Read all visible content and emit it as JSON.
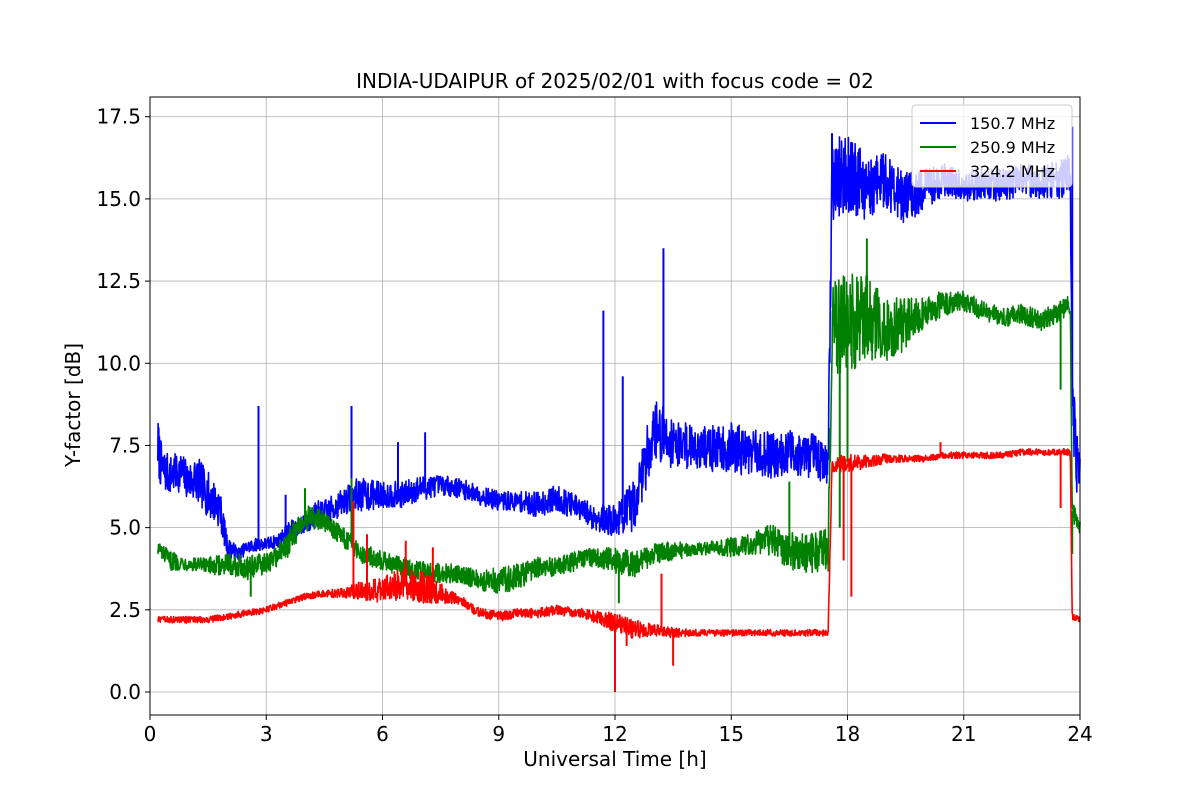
{
  "chart_data": {
    "type": "line",
    "title": "INDIA-UDAIPUR of 2025/02/01 with focus code = 02",
    "xlabel": "Universal Time [h]",
    "ylabel": "Y-factor [dB]",
    "xlim": [
      0,
      24
    ],
    "ylim": [
      -0.7,
      18.1
    ],
    "xticks": [
      0,
      3,
      6,
      9,
      12,
      15,
      18,
      21,
      24
    ],
    "xtick_labels": [
      "0",
      "3",
      "6",
      "9",
      "12",
      "15",
      "18",
      "21",
      "24"
    ],
    "yticks": [
      0.0,
      2.5,
      5.0,
      7.5,
      10.0,
      12.5,
      15.0,
      17.5
    ],
    "ytick_labels": [
      "0.0",
      "2.5",
      "5.0",
      "7.5",
      "10.0",
      "12.5",
      "15.0",
      "17.5"
    ],
    "grid": true,
    "legend_position": "top-right",
    "series": [
      {
        "name": "150.7 MHz",
        "color": "#0000ff",
        "x": [
          0.2,
          0.3,
          0.5,
          0.8,
          1.0,
          1.2,
          1.5,
          1.8,
          2.0,
          2.3,
          2.5,
          2.8,
          3.0,
          3.3,
          3.6,
          4.0,
          4.3,
          4.6,
          5.0,
          5.3,
          5.6,
          6.0,
          6.5,
          7.0,
          7.5,
          8.0,
          8.5,
          9.0,
          9.5,
          10.0,
          10.5,
          11.0,
          11.5,
          12.0,
          12.5,
          13.0,
          13.5,
          14.0,
          14.5,
          15.0,
          15.5,
          16.0,
          16.5,
          17.0,
          17.5,
          17.6,
          18.0,
          18.5,
          19.0,
          19.5,
          20.0,
          20.5,
          21.0,
          21.5,
          22.0,
          22.5,
          23.0,
          23.5,
          23.75,
          23.8,
          23.9,
          24.0
        ],
        "values": [
          7.5,
          6.8,
          6.6,
          6.7,
          6.4,
          6.5,
          6.0,
          5.6,
          4.4,
          4.2,
          4.4,
          4.5,
          4.5,
          4.6,
          4.9,
          5.1,
          5.4,
          5.5,
          5.8,
          6.0,
          6.0,
          6.0,
          6.0,
          6.2,
          6.3,
          6.2,
          6.0,
          5.8,
          5.8,
          5.7,
          5.9,
          5.6,
          5.3,
          5.2,
          5.7,
          8.0,
          7.6,
          7.5,
          7.4,
          7.4,
          7.3,
          7.2,
          7.3,
          7.2,
          7.0,
          15.5,
          15.8,
          15.3,
          15.6,
          15.0,
          15.3,
          15.6,
          15.4,
          15.5,
          15.4,
          15.6,
          15.5,
          15.6,
          15.8,
          9.0,
          7.0,
          6.7
        ],
        "noise": [
          0.9,
          0.7,
          0.6,
          0.6,
          0.6,
          0.7,
          0.7,
          0.6,
          0.3,
          0.2,
          0.2,
          0.2,
          0.2,
          0.2,
          0.3,
          0.3,
          0.4,
          0.4,
          0.4,
          0.5,
          0.5,
          0.4,
          0.4,
          0.4,
          0.3,
          0.3,
          0.3,
          0.3,
          0.3,
          0.4,
          0.4,
          0.4,
          0.4,
          0.5,
          0.8,
          1.0,
          0.8,
          0.7,
          0.7,
          0.8,
          0.7,
          0.7,
          0.7,
          0.7,
          0.7,
          1.3,
          1.2,
          1.0,
          0.9,
          0.8,
          0.6,
          0.5,
          0.5,
          0.5,
          0.5,
          0.5,
          0.5,
          0.6,
          0.6,
          1.2,
          1.0,
          0.5
        ],
        "spikes": [
          [
            2.8,
            8.7
          ],
          [
            3.5,
            6.0
          ],
          [
            5.2,
            8.7
          ],
          [
            6.4,
            7.6
          ],
          [
            7.1,
            7.9
          ],
          [
            11.7,
            11.6
          ],
          [
            12.2,
            9.6
          ],
          [
            13.25,
            13.5
          ],
          [
            17.6,
            17.0
          ],
          [
            23.8,
            17.2
          ]
        ]
      },
      {
        "name": "250.9 MHz",
        "color": "#008000",
        "x": [
          0.2,
          0.5,
          1.0,
          1.5,
          2.0,
          2.5,
          3.0,
          3.5,
          4.0,
          4.5,
          5.0,
          5.5,
          6.0,
          6.5,
          7.0,
          7.5,
          8.0,
          8.5,
          9.0,
          9.5,
          10.0,
          10.5,
          11.0,
          11.5,
          12.0,
          12.5,
          13.0,
          13.5,
          14.0,
          14.5,
          15.0,
          15.5,
          16.0,
          16.5,
          17.0,
          17.5,
          17.6,
          18.0,
          18.5,
          19.0,
          19.5,
          20.0,
          20.5,
          21.0,
          21.5,
          22.0,
          22.5,
          23.0,
          23.5,
          23.75,
          23.8,
          24.0
        ],
        "values": [
          4.4,
          4.0,
          3.9,
          3.8,
          3.9,
          3.8,
          3.9,
          4.4,
          5.3,
          5.2,
          4.7,
          4.2,
          4.0,
          3.8,
          3.7,
          3.6,
          3.6,
          3.4,
          3.4,
          3.5,
          3.8,
          3.8,
          4.0,
          4.1,
          4.0,
          3.9,
          4.2,
          4.3,
          4.3,
          4.4,
          4.4,
          4.5,
          4.6,
          4.3,
          4.2,
          4.3,
          11.0,
          11.2,
          11.4,
          11.0,
          11.2,
          11.6,
          11.8,
          11.9,
          11.6,
          11.4,
          11.5,
          11.3,
          11.6,
          11.8,
          5.5,
          5.0
        ],
        "noise": [
          0.2,
          0.3,
          0.2,
          0.3,
          0.3,
          0.4,
          0.3,
          0.4,
          0.4,
          0.3,
          0.3,
          0.3,
          0.3,
          0.3,
          0.3,
          0.3,
          0.3,
          0.3,
          0.4,
          0.4,
          0.3,
          0.3,
          0.3,
          0.3,
          0.4,
          0.4,
          0.3,
          0.3,
          0.2,
          0.2,
          0.3,
          0.3,
          0.5,
          0.6,
          0.6,
          0.7,
          1.4,
          1.6,
          1.3,
          1.0,
          0.8,
          0.5,
          0.4,
          0.3,
          0.3,
          0.3,
          0.3,
          0.3,
          0.3,
          0.3,
          0.3,
          0.3
        ],
        "spikes": [
          [
            2.6,
            2.9
          ],
          [
            4.0,
            6.2
          ],
          [
            5.2,
            6.5
          ],
          [
            12.1,
            2.7
          ],
          [
            16.5,
            6.4
          ],
          [
            18.5,
            13.8
          ],
          [
            17.8,
            5.0
          ],
          [
            18.0,
            7.0
          ],
          [
            23.5,
            9.2
          ],
          [
            23.8,
            4.2
          ]
        ]
      },
      {
        "name": "324.2 MHz",
        "color": "#ff0000",
        "x": [
          0.2,
          0.5,
          1.0,
          1.5,
          2.0,
          2.5,
          3.0,
          3.5,
          4.0,
          4.5,
          5.0,
          5.5,
          6.0,
          6.5,
          7.0,
          7.5,
          8.0,
          8.5,
          9.0,
          9.5,
          10.0,
          10.5,
          11.0,
          11.5,
          12.0,
          12.5,
          13.0,
          13.5,
          14.0,
          14.5,
          15.0,
          15.5,
          16.0,
          16.5,
          17.0,
          17.5,
          17.6,
          18.0,
          18.5,
          19.0,
          19.5,
          20.0,
          20.5,
          21.0,
          21.5,
          22.0,
          22.5,
          23.0,
          23.5,
          23.75,
          23.8,
          24.0
        ],
        "values": [
          2.2,
          2.2,
          2.2,
          2.2,
          2.3,
          2.4,
          2.5,
          2.7,
          2.9,
          3.0,
          3.0,
          3.1,
          3.1,
          3.3,
          3.2,
          3.0,
          2.8,
          2.4,
          2.3,
          2.4,
          2.4,
          2.5,
          2.4,
          2.3,
          2.1,
          1.9,
          1.9,
          1.8,
          1.8,
          1.8,
          1.8,
          1.8,
          1.8,
          1.8,
          1.8,
          1.8,
          6.9,
          7.0,
          7.0,
          7.1,
          7.1,
          7.1,
          7.2,
          7.2,
          7.2,
          7.2,
          7.3,
          7.3,
          7.3,
          7.3,
          2.3,
          2.2
        ],
        "noise": [
          0.1,
          0.1,
          0.1,
          0.1,
          0.1,
          0.1,
          0.1,
          0.1,
          0.1,
          0.1,
          0.15,
          0.3,
          0.4,
          0.5,
          0.5,
          0.3,
          0.15,
          0.15,
          0.15,
          0.15,
          0.15,
          0.15,
          0.15,
          0.2,
          0.3,
          0.3,
          0.2,
          0.15,
          0.1,
          0.1,
          0.1,
          0.1,
          0.1,
          0.1,
          0.1,
          0.1,
          0.2,
          0.3,
          0.2,
          0.15,
          0.1,
          0.1,
          0.1,
          0.1,
          0.1,
          0.1,
          0.1,
          0.1,
          0.1,
          0.1,
          0.1,
          0.1
        ],
        "spikes": [
          [
            5.25,
            5.8
          ],
          [
            5.6,
            4.8
          ],
          [
            6.6,
            4.6
          ],
          [
            7.3,
            4.4
          ],
          [
            12.0,
            0.0
          ],
          [
            12.3,
            1.4
          ],
          [
            13.2,
            3.6
          ],
          [
            13.5,
            0.8
          ],
          [
            17.9,
            4.0
          ],
          [
            18.1,
            2.9
          ],
          [
            20.4,
            7.6
          ],
          [
            23.5,
            5.6
          ]
        ]
      }
    ]
  }
}
